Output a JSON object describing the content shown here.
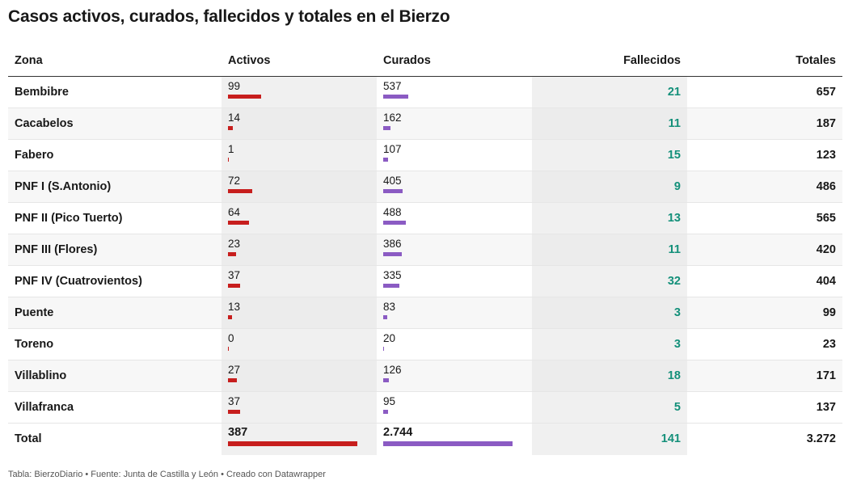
{
  "title": "Casos activos, curados, fallecidos y totales en el Bierzo",
  "footer": "Tabla: BierzoDiario • Fuente: Junta de Castilla y León • Creado con Datawrapper",
  "colors": {
    "activos_bar": "#c71e1d",
    "curados_bar": "#8b5bc3",
    "fallecidos_text": "#14907a"
  },
  "chart_data": {
    "type": "table",
    "title": "Casos activos, curados, fallecidos y totales en el Bierzo",
    "columns": [
      "Zona",
      "Activos",
      "Curados",
      "Fallecidos",
      "Totales"
    ],
    "max_activos": 387,
    "max_curados": 2744,
    "rows": [
      {
        "zona": "Bembibre",
        "activos": 99,
        "activos_label": "99",
        "curados": 537,
        "curados_label": "537",
        "fallecidos": "21",
        "totales": "657"
      },
      {
        "zona": "Cacabelos",
        "activos": 14,
        "activos_label": "14",
        "curados": 162,
        "curados_label": "162",
        "fallecidos": "11",
        "totales": "187"
      },
      {
        "zona": "Fabero",
        "activos": 1,
        "activos_label": "1",
        "curados": 107,
        "curados_label": "107",
        "fallecidos": "15",
        "totales": "123"
      },
      {
        "zona": "PNF I (S.Antonio)",
        "activos": 72,
        "activos_label": "72",
        "curados": 405,
        "curados_label": "405",
        "fallecidos": "9",
        "totales": "486"
      },
      {
        "zona": "PNF II (Pico Tuerto)",
        "activos": 64,
        "activos_label": "64",
        "curados": 488,
        "curados_label": "488",
        "fallecidos": "13",
        "totales": "565"
      },
      {
        "zona": "PNF III (Flores)",
        "activos": 23,
        "activos_label": "23",
        "curados": 386,
        "curados_label": "386",
        "fallecidos": "11",
        "totales": "420"
      },
      {
        "zona": "PNF IV (Cuatrovientos)",
        "activos": 37,
        "activos_label": "37",
        "curados": 335,
        "curados_label": "335",
        "fallecidos": "32",
        "totales": "404"
      },
      {
        "zona": "Puente",
        "activos": 13,
        "activos_label": "13",
        "curados": 83,
        "curados_label": "83",
        "fallecidos": "3",
        "totales": "99"
      },
      {
        "zona": "Toreno",
        "activos": 0,
        "activos_label": "0",
        "curados": 20,
        "curados_label": "20",
        "fallecidos": "3",
        "totales": "23"
      },
      {
        "zona": "Villablino",
        "activos": 27,
        "activos_label": "27",
        "curados": 126,
        "curados_label": "126",
        "fallecidos": "18",
        "totales": "171"
      },
      {
        "zona": "Villafranca",
        "activos": 37,
        "activos_label": "37",
        "curados": 95,
        "curados_label": "95",
        "fallecidos": "5",
        "totales": "137"
      }
    ],
    "total": {
      "zona": "Total",
      "activos": 387,
      "activos_label": "387",
      "curados": 2744,
      "curados_label": "2.744",
      "fallecidos": "141",
      "totales": "3.272"
    }
  }
}
